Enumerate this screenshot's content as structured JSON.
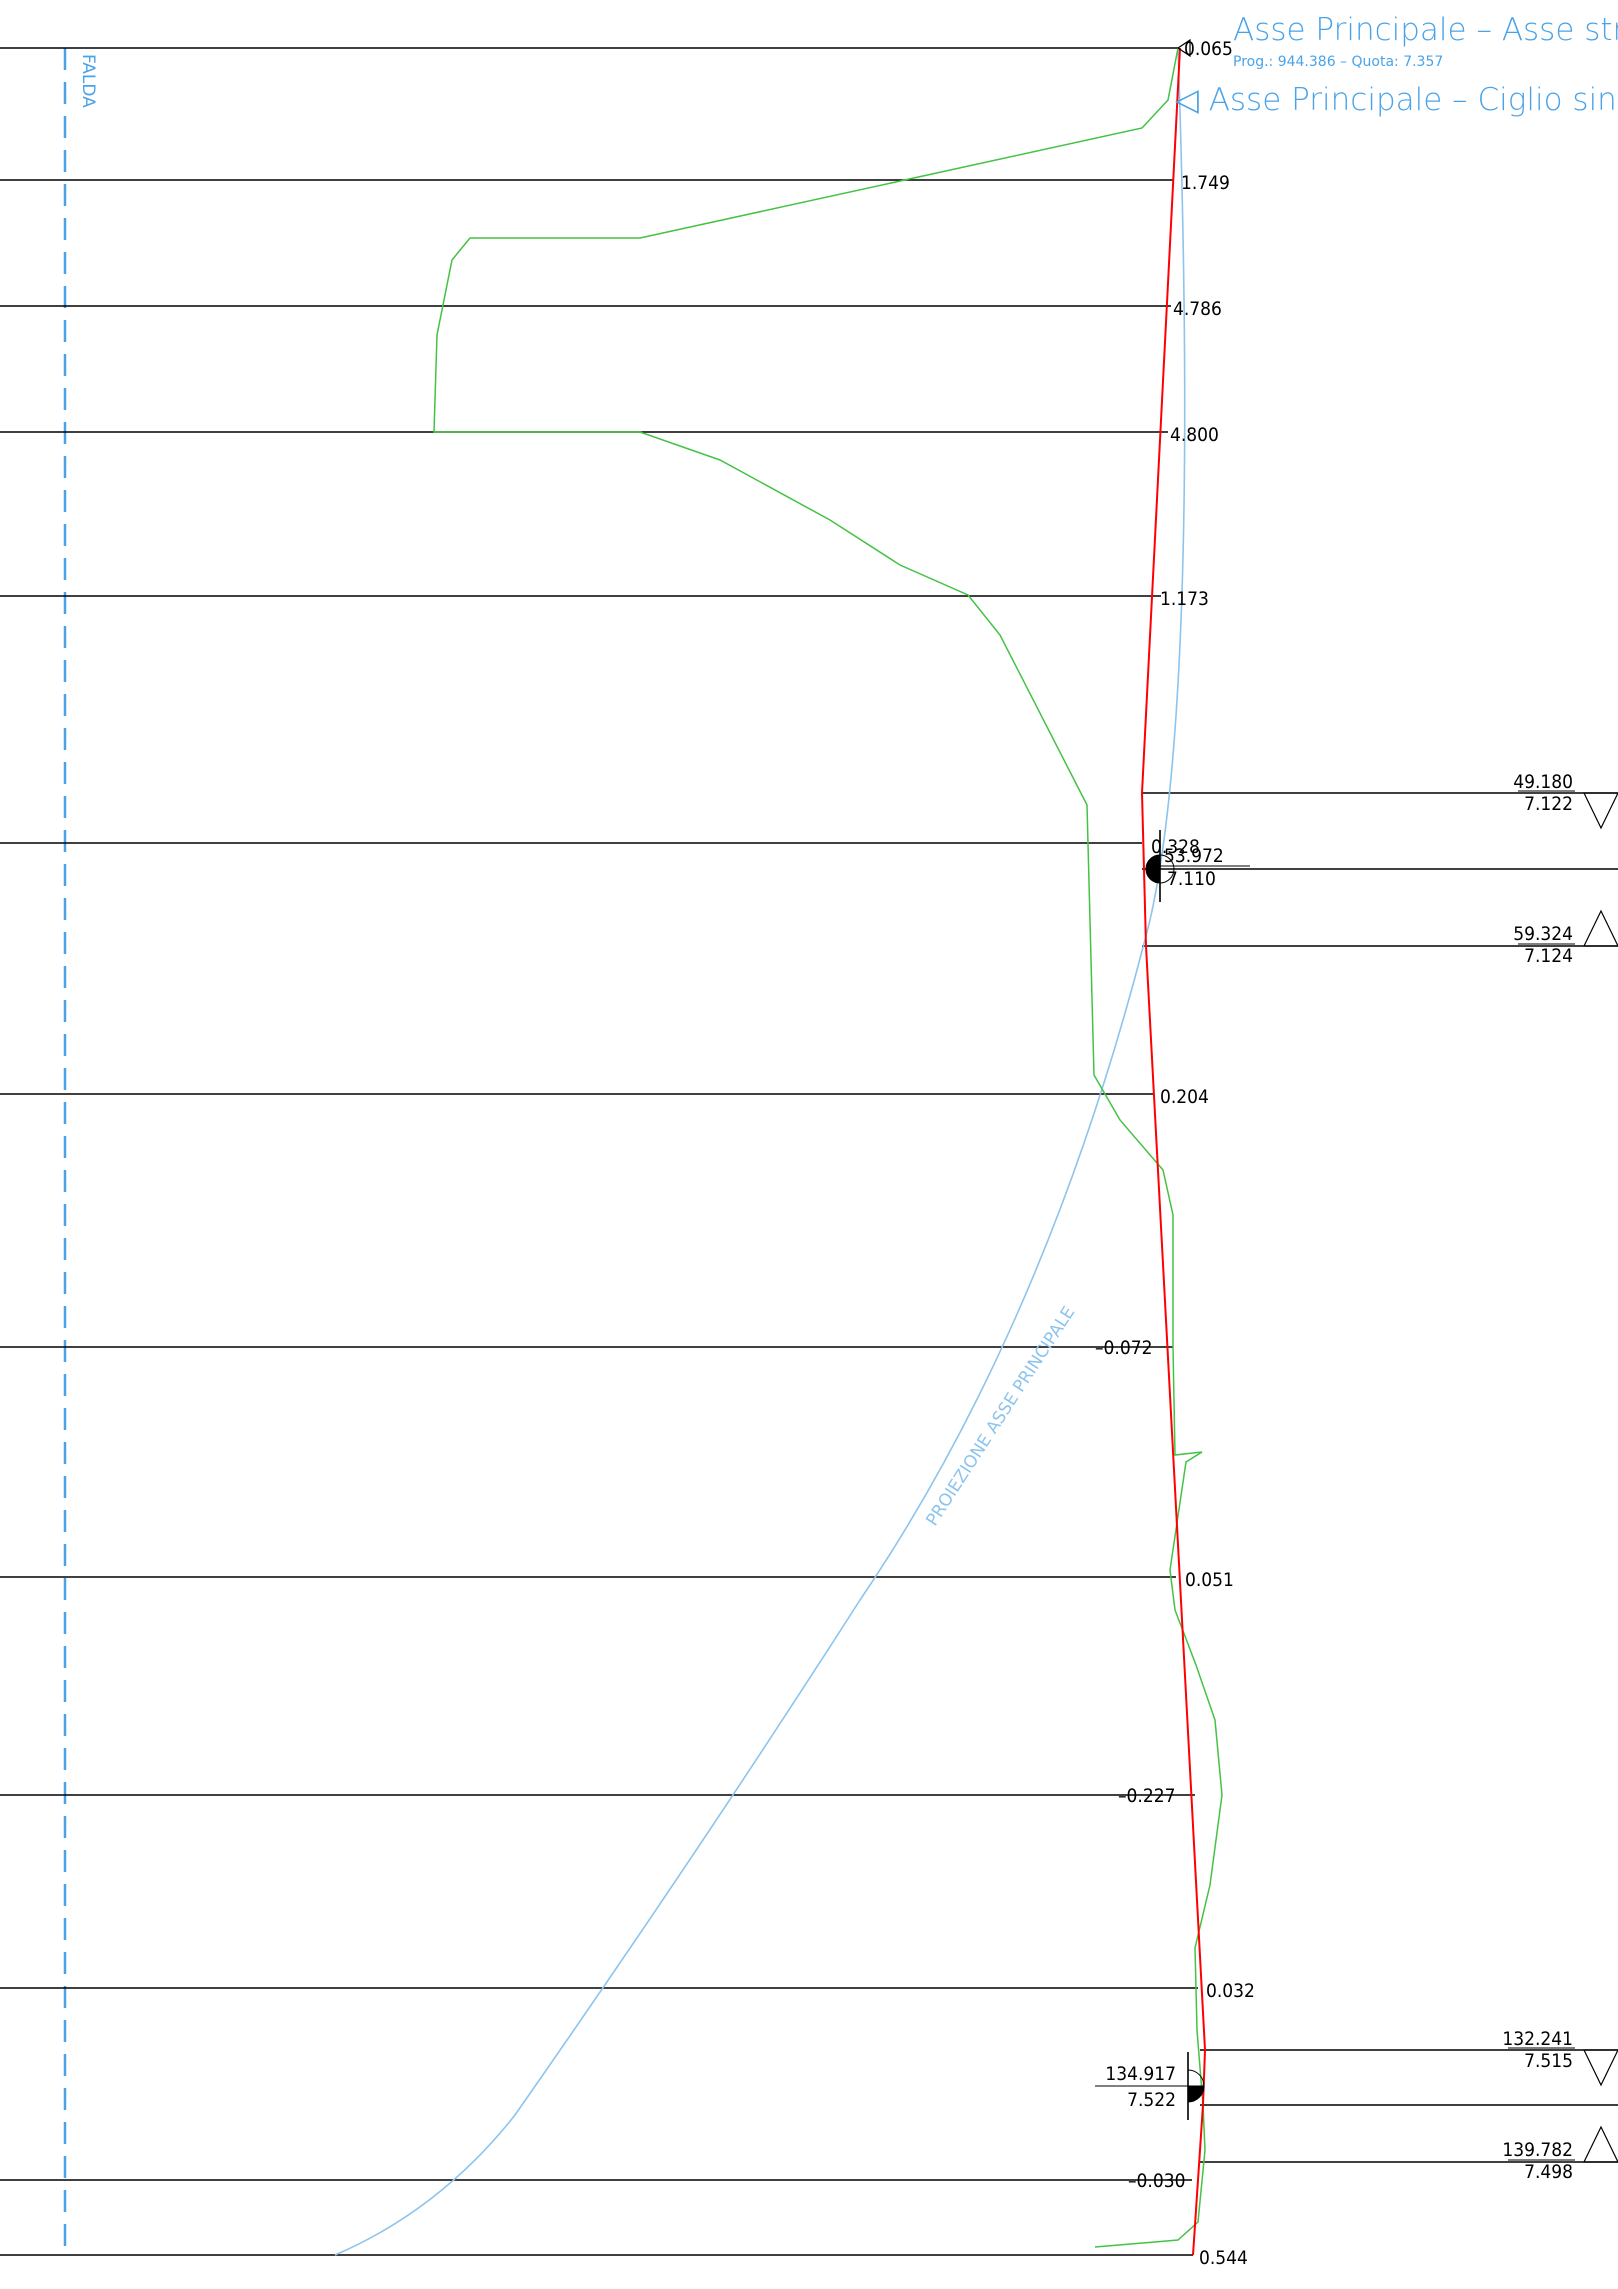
{
  "titles": {
    "main": "Asse Principale – Asse strada",
    "sub": "Prog.: 944.386 – Quota: 7.357",
    "ciglio": "◁ Asse Principale – Ciglio sinistro",
    "falda": "FALDA",
    "proiezione": "PROIEZIONE ASSE PRINCIPALE"
  },
  "sections": [
    {
      "label": "0.065"
    },
    {
      "label": "1.749"
    },
    {
      "label": "4.786"
    },
    {
      "label": "4.800"
    },
    {
      "label": "1.173"
    },
    {
      "label": "0.328"
    },
    {
      "label": "0.204"
    },
    {
      "label": "–0.072"
    },
    {
      "label": "0.051"
    },
    {
      "label": "–0.227"
    },
    {
      "label": "0.032"
    },
    {
      "label": "–0.030"
    },
    {
      "label": "0.544"
    }
  ],
  "points": [
    {
      "prog": "49.180",
      "quota": "7.122",
      "symbol": "down-triangle"
    },
    {
      "prog": "53.972",
      "quota": "7.110",
      "symbol": "half-circle"
    },
    {
      "prog": "59.324",
      "quota": "7.124",
      "symbol": "up-triangle"
    },
    {
      "prog": "132.241",
      "quota": "7.515",
      "symbol": "down-triangle"
    },
    {
      "prog": "134.917",
      "quota": "7.522",
      "symbol": "half-circle"
    },
    {
      "prog": "139.782",
      "quota": "7.498",
      "symbol": "up-triangle"
    }
  ],
  "colors": {
    "profile": "#ff0000",
    "terrain": "#44c244",
    "projection": "#8cc4ee",
    "annotation": "#4aa3e8",
    "lines": "#000000"
  }
}
